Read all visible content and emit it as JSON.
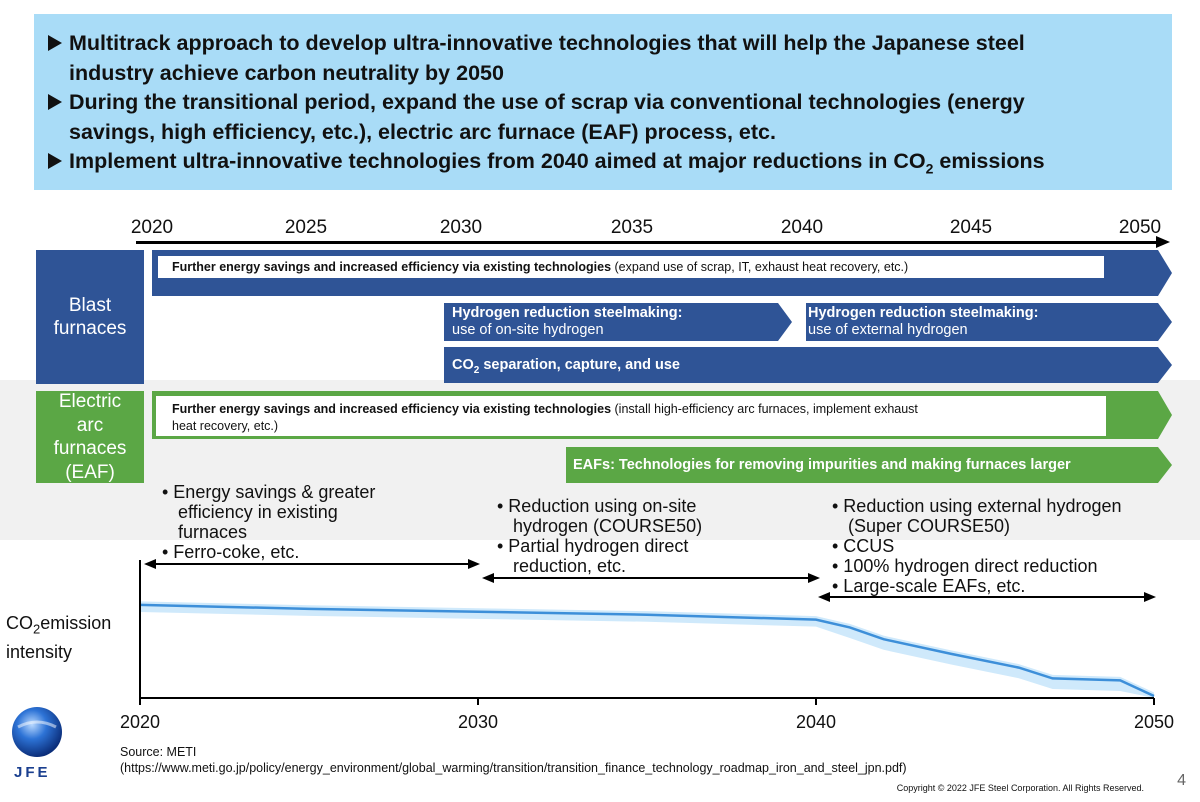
{
  "summary": {
    "bullets": [
      [
        "Multitrack approach to develop ultra-innovative technologies that will help the Japanese steel",
        "industry achieve carbon neutrality by 2050"
      ],
      [
        "During the transitional period, expand the use of scrap via conventional technologies (energy",
        "savings, high efficiency, etc.), electric arc furnace (EAF) process, etc."
      ],
      [
        "Implement ultra-innovative technologies from 2040 aimed at major reductions in CO",
        "2",
        " emissions"
      ]
    ]
  },
  "timeline": {
    "years": [
      "2020",
      "2025",
      "2030",
      "2035",
      "2040",
      "2045",
      "2050"
    ]
  },
  "categories": {
    "blast": [
      "Blast",
      "furnaces"
    ],
    "eaf": [
      "Electric",
      "arc",
      "furnaces",
      "(EAF)"
    ]
  },
  "bars": {
    "blast_existing_bold": "Further energy savings and increased efficiency via existing technologies",
    "blast_existing_rest": " (expand use of scrap, IT, exhaust heat recovery, etc.)",
    "h2_onsite_1": "Hydrogen reduction steelmaking:",
    "h2_onsite_2": "use of on-site hydrogen",
    "h2_external_1": "Hydrogen reduction steelmaking:",
    "h2_external_2": "use of external hydrogen",
    "co2_pre": "CO",
    "co2_sub": "2",
    "co2_post": " separation, capture, and use",
    "eaf_existing_bold": "Further energy savings and increased efficiency via existing technologies",
    "eaf_existing_rest": " (install high-efficiency arc furnaces, implement exhaust",
    "eaf_existing_rest2": "heat recovery, etc.)",
    "eaf_large": "EAFs: Technologies for removing impurities and making furnaces larger"
  },
  "notes": {
    "phase1": [
      "• Energy savings & greater",
      "efficiency in existing",
      "furnaces",
      "• Ferro-coke, etc."
    ],
    "phase2": [
      "• Reduction using on-site",
      "hydrogen (COURSE50)",
      "• Partial hydrogen direct",
      "reduction, etc."
    ],
    "phase3": [
      "• Reduction using external hydrogen",
      "(Super COURSE50)",
      "• CCUS",
      "• 100% hydrogen direct reduction",
      "• Large-scale EAFs, etc."
    ]
  },
  "chart_data": {
    "type": "area",
    "title": "",
    "xlabel": "",
    "ylabel_pre": "CO",
    "ylabel_sub": "2",
    "ylabel_post": "emission",
    "ylabel_2": "intensity",
    "x_ticks": [
      "2020",
      "2030",
      "2040",
      "2050"
    ],
    "xlim": [
      2020,
      2050
    ],
    "ylim": [
      0,
      1
    ],
    "x": [
      2020,
      2025,
      2030,
      2035,
      2040,
      2041,
      2042,
      2044,
      2046,
      2047,
      2049,
      2050
    ],
    "y": [
      0.95,
      0.91,
      0.88,
      0.85,
      0.8,
      0.72,
      0.6,
      0.45,
      0.31,
      0.2,
      0.18,
      0.02
    ],
    "band_halfwidth": 0.06
  },
  "source": {
    "line1": "Source:  METI",
    "line2": "(https://www.meti.go.jp/policy/energy_environment/global_warming/transition/transition_finance_technology_roadmap_iron_and_steel_jpn.pdf)"
  },
  "copyright": "Copyright © 2022 JFE Steel Corporation. All Rights Reserved.",
  "page_number": "4",
  "logo": "JFE"
}
